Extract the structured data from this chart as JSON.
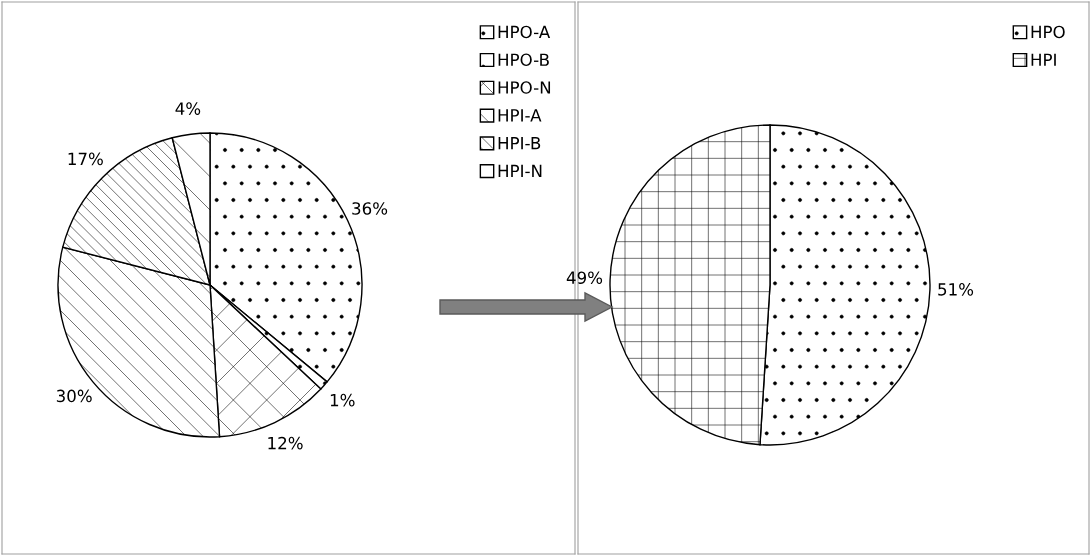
{
  "chart_data": [
    {
      "type": "pie",
      "categories": [
        "HPO-A",
        "HPO-B",
        "HPO-N",
        "HPI-A",
        "HPI-B",
        "HPI-N"
      ],
      "values": [
        36,
        1,
        12,
        30,
        17,
        4
      ],
      "colors": [
        "#ffffff",
        "#ffffff",
        "#ffffff",
        "#ffffff",
        "#ffffff",
        "#ffffff"
      ],
      "value_labels": [
        "36%",
        "1%",
        "12%",
        "30%",
        "17%",
        "4%"
      ],
      "legend": "top right"
    },
    {
      "type": "pie",
      "categories": [
        "HPO",
        "HPI"
      ],
      "values": [
        51,
        49
      ],
      "colors": [
        "#ffffff",
        "#ffffff"
      ],
      "value_labels": [
        "51%",
        "49%"
      ],
      "legend": "top right"
    }
  ]
}
